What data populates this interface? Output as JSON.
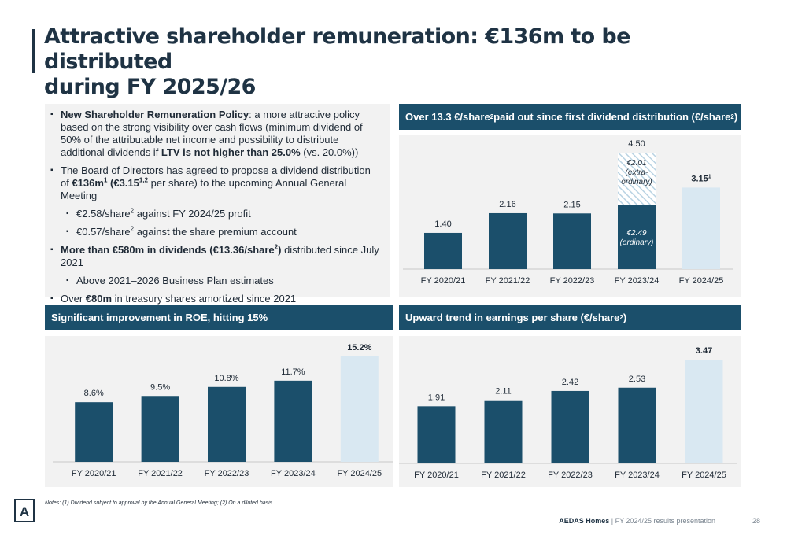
{
  "title_line1": "Attractive shareholder remuneration: €136m to be distributed",
  "title_line2": "during FY 2025/26",
  "bullets": {
    "b1_bold": "New Shareholder Remuneration Policy",
    "b1_text": ": a more attractive policy based on the strong visibility over cash flows (minimum dividend of 50% of the attributable net income and possibility to distribute additional dividends if ",
    "b1_bold2": "LTV is not higher than 25.0%",
    "b1_text2": " (vs. 20.0%))",
    "b2_text": "The Board of Directors has agreed to propose a dividend distribution of ",
    "b2_bold": "€136m",
    "b2_sup1": "1",
    "b2_bold2": " (€3.15",
    "b2_sup2": "1,2",
    "b2_text2": " per share) to the upcoming Annual General Meeting",
    "s1_text": "€2.58/share",
    "s1_sup": "2",
    "s1_text2": " against FY 2024/25 profit",
    "s2_text": "€0.57/share",
    "s2_sup": "2",
    "s2_text2": " against the share premium account",
    "b3_bold": "More than €580m in dividends (€13.36/share",
    "b3_sup": "2",
    "b3_bold2": ")",
    "b3_text": " distributed since July 2021",
    "s3_text": "Above 2021–2026 Business Plan estimates",
    "b4_text": "Over ",
    "b4_bold": "€80m",
    "b4_text2": " in treasury shares amortized since 2021"
  },
  "headers": {
    "dividend": "Over 13.3 €/share",
    "dividend_sup": "2",
    "dividend2": " paid out since first dividend distribution (€/share",
    "dividend_sup2": "2",
    "dividend3": ")",
    "roe": "Significant improvement in ROE, hitting 15%",
    "eps": "Upward trend in earnings per share (€/share",
    "eps_sup": "2",
    "eps2": ")"
  },
  "chart_data": [
    {
      "type": "bar",
      "categories": [
        "FY 2020/21",
        "FY 2021/22",
        "FY 2022/23",
        "FY 2023/24",
        "FY 2024/25"
      ],
      "values": [
        1.4,
        2.16,
        2.15,
        4.5,
        3.15
      ],
      "labels": [
        "1.40",
        "2.16",
        "2.15",
        "4.50",
        "3.15"
      ],
      "highlight_last_sup": "1",
      "stacked_fy2023_24": {
        "ordinary": 2.49,
        "ordinary_label_value": "€2.49",
        "ordinary_label_text": "(ordinary)",
        "extraordinary": 2.01,
        "extraordinary_label_value": "€2.01",
        "extraordinary_label_text1": "(extra-",
        "extraordinary_label_text2": "ordinary)"
      },
      "colors": {
        "bar": "#1b4f6b",
        "highlight": "#d9e8f2"
      }
    },
    {
      "type": "bar",
      "categories": [
        "FY 2020/21",
        "FY 2021/22",
        "FY 2022/23",
        "FY 2023/24",
        "FY 2024/25"
      ],
      "values": [
        8.6,
        9.5,
        10.8,
        11.7,
        15.2
      ],
      "labels": [
        "8.6%",
        "9.5%",
        "10.8%",
        "11.7%",
        "15.2%"
      ],
      "colors": {
        "bar": "#1b4f6b",
        "highlight": "#d9e8f2"
      }
    },
    {
      "type": "bar",
      "categories": [
        "FY 2020/21",
        "FY 2021/22",
        "FY 2022/23",
        "FY 2023/24",
        "FY 2024/25"
      ],
      "values": [
        1.91,
        2.11,
        2.42,
        2.53,
        3.47
      ],
      "labels": [
        "1.91",
        "2.11",
        "2.42",
        "2.53",
        "3.47"
      ],
      "colors": {
        "bar": "#1b4f6b",
        "highlight": "#d9e8f2"
      }
    }
  ],
  "notes": "Notes: (1) Dividend subject to approval by the Annual General Meeting; (2) On a diluted basis",
  "footer": {
    "company": "AEDAS Homes",
    "separator": " | ",
    "text": "FY 2024/25 results presentation",
    "page": "28"
  },
  "logo_letter": "A"
}
